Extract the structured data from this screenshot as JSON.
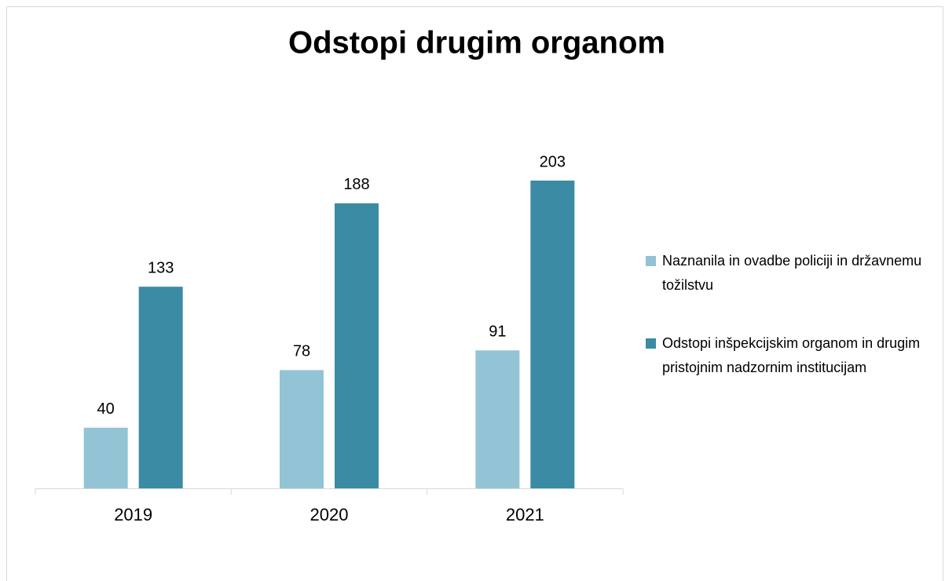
{
  "chart_data": {
    "type": "bar",
    "title": "Odstopi drugim organom",
    "categories": [
      "2019",
      "2020",
      "2021"
    ],
    "series": [
      {
        "name": "Naznanila in ovadbe policiji in državnemu tožilstvu",
        "color": "#92c4d5",
        "values": [
          40,
          78,
          91
        ]
      },
      {
        "name": "Odstopi inšpekcijskim organom in drugim pristojnim nadzornim institucijam",
        "color": "#3a8ba3",
        "values": [
          133,
          188,
          203
        ]
      }
    ],
    "legend": "right"
  }
}
